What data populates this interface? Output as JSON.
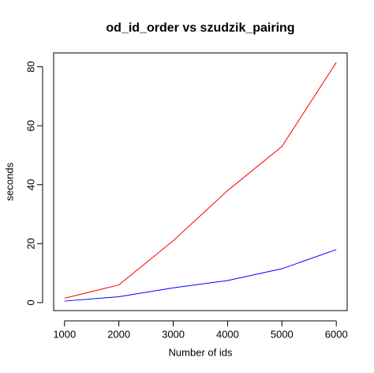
{
  "chart_data": {
    "type": "line",
    "title": "od_id_order vs szudzik_pairing",
    "xlabel": "Number of ids",
    "ylabel": "seconds",
    "x": [
      1000,
      2000,
      3000,
      4000,
      5000,
      6000
    ],
    "series": [
      {
        "color": "#ff0000",
        "values": [
          1.5,
          6,
          21,
          38,
          53,
          81.5
        ]
      },
      {
        "color": "#0000ff",
        "values": [
          0.5,
          2,
          5,
          7.5,
          11.5,
          18
        ]
      }
    ],
    "xlim": [
      800,
      6200
    ],
    "xticks": [
      1000,
      2000,
      3000,
      4000,
      5000,
      6000
    ],
    "ylim": [
      -2.7,
      84.7
    ],
    "yticks": [
      0,
      20,
      40,
      60,
      80
    ]
  }
}
